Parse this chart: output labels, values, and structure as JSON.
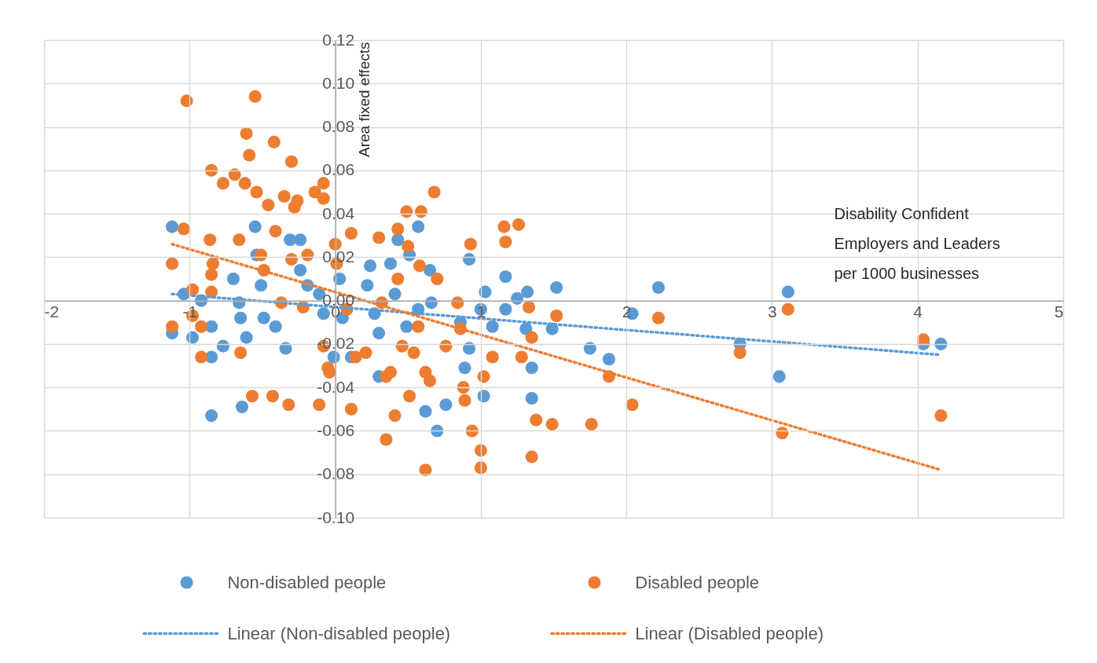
{
  "chart_data": {
    "type": "scatter",
    "xlabel": "Disability Confident Employers and Leaders per 1000 businesses",
    "ylabel": "Area fixed effects",
    "xlim": [
      -2,
      5
    ],
    "xticks": [
      -2,
      -1,
      0,
      1,
      2,
      3,
      4,
      5
    ],
    "ylim": [
      -0.1,
      0.12
    ],
    "yticks": [
      {
        "value": -0.1,
        "label": "-0.10"
      },
      {
        "value": -0.08,
        "label": "-0.08"
      },
      {
        "value": -0.06,
        "label": "-0.06"
      },
      {
        "value": -0.04,
        "label": "-0.04"
      },
      {
        "value": -0.02,
        "label": "-0.02"
      },
      {
        "value": 0,
        "label": "0.00"
      },
      {
        "value": 0.02,
        "label": "0.02"
      },
      {
        "value": 0.04,
        "label": "0.04"
      },
      {
        "value": 0.06,
        "label": "0.06"
      },
      {
        "value": 0.08,
        "label": "0.08"
      },
      {
        "value": 0.1,
        "label": "0.10"
      },
      {
        "value": 0.12,
        "label": "0.12"
      }
    ],
    "grid": true,
    "legend": "bottom",
    "series": [
      {
        "name": "Non-disabled people",
        "type": "scatter",
        "marker": "circle",
        "color": "#5b9bd5",
        "x": [
          -1.12,
          -1.12,
          -1.04,
          -0.98,
          -0.92,
          -0.85,
          -0.85,
          -0.85,
          -0.77,
          -0.7,
          -0.66,
          -0.65,
          -0.64,
          -0.61,
          -0.55,
          -0.54,
          -0.51,
          -0.49,
          -0.41,
          -0.34,
          -0.31,
          -0.24,
          -0.24,
          -0.19,
          -0.11,
          -0.08,
          -0.01,
          0.03,
          0.05,
          0.11,
          0.22,
          0.24,
          0.27,
          0.3,
          0.3,
          0.38,
          0.41,
          0.43,
          0.49,
          0.51,
          0.57,
          0.57,
          0.62,
          0.65,
          0.66,
          0.7,
          0.76,
          0.86,
          0.92,
          0.89,
          0.92,
          1.0,
          1.02,
          1.03,
          1.08,
          1.17,
          1.17,
          1.25,
          1.31,
          1.32,
          1.35,
          1.35,
          1.49,
          1.52,
          1.75,
          1.88,
          2.04,
          2.22,
          2.78,
          3.05,
          3.11,
          4.04,
          4.16
        ],
        "values": [
          0.034,
          -0.015,
          0.003,
          -0.017,
          0.0,
          -0.012,
          -0.026,
          -0.053,
          -0.021,
          0.01,
          -0.001,
          -0.008,
          -0.049,
          -0.017,
          0.034,
          0.021,
          0.007,
          -0.008,
          -0.012,
          -0.022,
          0.028,
          0.028,
          0.014,
          0.007,
          0.003,
          -0.006,
          -0.026,
          0.01,
          -0.008,
          -0.026,
          0.007,
          0.016,
          -0.006,
          -0.015,
          -0.035,
          0.017,
          0.003,
          0.028,
          -0.012,
          0.021,
          0.034,
          -0.004,
          -0.051,
          0.014,
          -0.001,
          -0.06,
          -0.048,
          -0.01,
          0.019,
          -0.031,
          -0.022,
          -0.004,
          -0.044,
          0.004,
          -0.012,
          0.011,
          -0.004,
          0.001,
          -0.013,
          0.004,
          -0.031,
          -0.045,
          -0.013,
          0.006,
          -0.022,
          -0.027,
          -0.006,
          0.006,
          -0.02,
          -0.035,
          0.004,
          -0.02,
          -0.02
        ]
      },
      {
        "name": "Disabled people",
        "type": "scatter",
        "marker": "circle",
        "color": "#ed7d31",
        "x": [
          -1.12,
          -1.12,
          -1.02,
          -1.04,
          -0.98,
          -0.98,
          -0.92,
          -0.92,
          -0.85,
          -0.86,
          -0.84,
          -0.85,
          -0.85,
          -0.77,
          -0.69,
          -0.66,
          -0.65,
          -0.62,
          -0.61,
          -0.59,
          -0.57,
          -0.55,
          -0.54,
          -0.51,
          -0.49,
          -0.46,
          -0.43,
          -0.42,
          -0.41,
          -0.37,
          -0.35,
          -0.32,
          -0.3,
          -0.3,
          -0.28,
          -0.26,
          -0.22,
          -0.19,
          -0.14,
          -0.11,
          -0.08,
          -0.08,
          -0.05,
          -0.04,
          -0.08,
          0.0,
          0.01,
          0.11,
          0.08,
          0.14,
          0.11,
          0.21,
          0.3,
          0.32,
          0.35,
          0.35,
          0.38,
          0.41,
          0.43,
          0.43,
          0.46,
          0.49,
          0.5,
          0.51,
          0.54,
          0.57,
          0.58,
          0.59,
          0.62,
          0.62,
          0.65,
          0.68,
          0.7,
          0.76,
          0.84,
          0.86,
          0.88,
          0.89,
          0.93,
          0.94,
          1.0,
          1.0,
          1.02,
          1.08,
          1.16,
          1.17,
          1.26,
          1.28,
          1.33,
          1.35,
          1.35,
          1.38,
          1.49,
          1.52,
          1.76,
          1.88,
          2.04,
          2.22,
          2.78,
          3.07,
          3.11,
          4.04,
          4.16
        ],
        "values": [
          0.017,
          -0.012,
          0.092,
          0.033,
          0.005,
          -0.007,
          -0.026,
          -0.012,
          0.06,
          0.028,
          0.017,
          0.012,
          0.004,
          0.054,
          0.058,
          0.028,
          -0.024,
          0.054,
          0.077,
          0.067,
          -0.044,
          0.094,
          0.05,
          0.021,
          0.014,
          0.044,
          -0.044,
          0.073,
          0.032,
          -0.001,
          0.048,
          -0.048,
          0.064,
          0.019,
          0.043,
          0.046,
          -0.003,
          0.021,
          0.05,
          -0.048,
          0.054,
          0.047,
          -0.031,
          -0.033,
          -0.021,
          0.026,
          0.017,
          0.031,
          -0.004,
          -0.026,
          -0.05,
          -0.024,
          0.029,
          -0.001,
          -0.035,
          -0.064,
          -0.033,
          -0.053,
          0.01,
          0.033,
          -0.021,
          0.041,
          0.025,
          -0.044,
          -0.024,
          -0.012,
          0.016,
          0.041,
          -0.078,
          -0.033,
          -0.037,
          0.05,
          0.01,
          -0.021,
          -0.001,
          -0.013,
          -0.04,
          -0.046,
          0.026,
          -0.06,
          -0.069,
          -0.077,
          -0.035,
          -0.026,
          0.034,
          0.027,
          0.035,
          -0.026,
          -0.003,
          -0.017,
          -0.072,
          -0.055,
          -0.057,
          -0.007,
          -0.057,
          -0.035,
          -0.048,
          -0.008,
          -0.024,
          -0.061,
          -0.004,
          -0.018,
          -0.053
        ]
      },
      {
        "name": "Linear (Non-disabled people)",
        "type": "line",
        "line_style": "dotted",
        "color": "#5b9bd5",
        "x": [
          -1.12,
          4.16
        ],
        "values": [
          0.003,
          -0.025
        ]
      },
      {
        "name": "Linear (Disabled people)",
        "type": "line",
        "line_style": "dotted",
        "color": "#ed7d31",
        "x": [
          -1.12,
          4.16
        ],
        "values": [
          0.026,
          -0.078
        ]
      }
    ]
  }
}
